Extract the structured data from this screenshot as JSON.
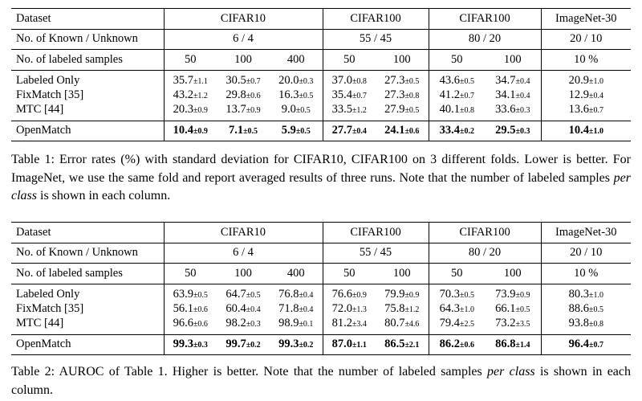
{
  "table1": {
    "header": {
      "dataset_label": "Dataset",
      "datasets": [
        "CIFAR10",
        "CIFAR100",
        "CIFAR100",
        "ImageNet-30"
      ],
      "known_label": "No. of Known / Unknown",
      "known": [
        "6 / 4",
        "55 / 45",
        "80 / 20",
        "20 / 10"
      ],
      "samples_label": "No. of labeled samples",
      "samples": [
        "50",
        "100",
        "400",
        "50",
        "100",
        "50",
        "100",
        "10 %"
      ]
    },
    "rows": [
      {
        "method": "Labeled Only",
        "cells": [
          [
            "35.7",
            "±1.1"
          ],
          [
            "30.5",
            "±0.7"
          ],
          [
            "20.0",
            "±0.3"
          ],
          [
            "37.0",
            "±0.8"
          ],
          [
            "27.3",
            "±0.5"
          ],
          [
            "43.6",
            "±0.5"
          ],
          [
            "34.7",
            "±0.4"
          ],
          [
            "20.9",
            "±1.0"
          ]
        ]
      },
      {
        "method": "FixMatch [35]",
        "cells": [
          [
            "43.2",
            "±1.2"
          ],
          [
            "29.8",
            "±0.6"
          ],
          [
            "16.3",
            "±0.5"
          ],
          [
            "35.4",
            "±0.7"
          ],
          [
            "27.3",
            "±0.8"
          ],
          [
            "41.2",
            "±0.7"
          ],
          [
            "34.1",
            "±0.4"
          ],
          [
            "12.9",
            "±0.4"
          ]
        ]
      },
      {
        "method": "MTC [44]",
        "cells": [
          [
            "20.3",
            "±0.9"
          ],
          [
            "13.7",
            "±0.9"
          ],
          [
            "9.0",
            "±0.5"
          ],
          [
            "33.5",
            "±1.2"
          ],
          [
            "27.9",
            "±0.5"
          ],
          [
            "40.1",
            "±0.8"
          ],
          [
            "33.6",
            "±0.3"
          ],
          [
            "13.6",
            "±0.7"
          ]
        ]
      },
      {
        "method": "OpenMatch",
        "cells": [
          [
            "10.4",
            "±0.9"
          ],
          [
            "7.1",
            "±0.5"
          ],
          [
            "5.9",
            "±0.5"
          ],
          [
            "27.7",
            "±0.4"
          ],
          [
            "24.1",
            "±0.6"
          ],
          [
            "33.4",
            "±0.2"
          ],
          [
            "29.5",
            "±0.3"
          ],
          [
            "10.4",
            "±1.0"
          ]
        ]
      }
    ],
    "caption_a": "Table 1: Error rates (%) with standard deviation for CIFAR10, CIFAR100 on 3 different folds. Lower is better. For ImageNet, we use the same fold and report averaged results of three runs. Note that the number of labeled samples ",
    "caption_em": "per class",
    "caption_b": " is shown in each column."
  },
  "table2": {
    "header": {
      "dataset_label": "Dataset",
      "datasets": [
        "CIFAR10",
        "CIFAR100",
        "CIFAR100",
        "ImageNet-30"
      ],
      "known_label": "No. of Known / Unknown",
      "known": [
        "6 / 4",
        "55 / 45",
        "80 / 20",
        "20 / 10"
      ],
      "samples_label": "No. of labeled samples",
      "samples": [
        "50",
        "100",
        "400",
        "50",
        "100",
        "50",
        "100",
        "10 %"
      ]
    },
    "rows": [
      {
        "method": "Labeled Only",
        "cells": [
          [
            "63.9",
            "±0.5"
          ],
          [
            "64.7",
            "±0.5"
          ],
          [
            "76.8",
            "±0.4"
          ],
          [
            "76.6",
            "±0.9"
          ],
          [
            "79.9",
            "±0.9"
          ],
          [
            "70.3",
            "±0.5"
          ],
          [
            "73.9",
            "±0.9"
          ],
          [
            "80.3",
            "±1.0"
          ]
        ]
      },
      {
        "method": "FixMatch [35]",
        "cells": [
          [
            "56.1",
            "±0.6"
          ],
          [
            "60.4",
            "±0.4"
          ],
          [
            "71.8",
            "±0.4"
          ],
          [
            "72.0",
            "±1.3"
          ],
          [
            "75.8",
            "±1.2"
          ],
          [
            "64.3",
            "±1.0"
          ],
          [
            "66.1",
            "±0.5"
          ],
          [
            "88.6",
            "±0.5"
          ]
        ]
      },
      {
        "method": "MTC [44]",
        "cells": [
          [
            "96.6",
            "±0.6"
          ],
          [
            "98.2",
            "±0.3"
          ],
          [
            "98.9",
            "±0.1"
          ],
          [
            "81.2",
            "±3.4"
          ],
          [
            "80.7",
            "±4.6"
          ],
          [
            "79.4",
            "±2.5"
          ],
          [
            "73.2",
            "±3.5"
          ],
          [
            "93.8",
            "±0.8"
          ]
        ]
      },
      {
        "method": "OpenMatch",
        "cells": [
          [
            "99.3",
            "±0.3"
          ],
          [
            "99.7",
            "±0.2"
          ],
          [
            "99.3",
            "±0.2"
          ],
          [
            "87.0",
            "±1.1"
          ],
          [
            "86.5",
            "±2.1"
          ],
          [
            "86.2",
            "±0.6"
          ],
          [
            "86.8",
            "±1.4"
          ],
          [
            "96.4",
            "±0.7"
          ]
        ]
      }
    ],
    "caption_a": "Table 2: AUROC of Table 1. Higher is better. Note that the number of labeled samples ",
    "caption_em": "per class",
    "caption_b": " is shown in each column."
  }
}
